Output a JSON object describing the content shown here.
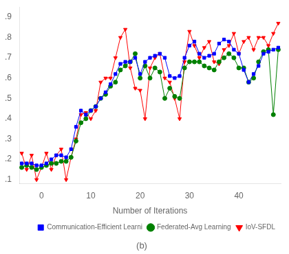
{
  "chart_data": {
    "type": "line",
    "xlabel": "Number of Iterations",
    "annotation": "(b)",
    "x": [
      -4,
      -3,
      -2,
      -1,
      0,
      1,
      2,
      3,
      4,
      5,
      6,
      7,
      8,
      9,
      10,
      11,
      12,
      13,
      14,
      15,
      16,
      17,
      18,
      19,
      20,
      21,
      22,
      23,
      24,
      25,
      26,
      27,
      28,
      29,
      30,
      31,
      32,
      33,
      34,
      35,
      36,
      37,
      38,
      39,
      40,
      41,
      42,
      43,
      44,
      45,
      46,
      47,
      48
    ],
    "series": [
      {
        "name": "Communication-Efficient Learni",
        "color": "#0000FF",
        "marker": "square",
        "values": [
          0.18,
          0.18,
          0.18,
          0.17,
          0.17,
          0.18,
          0.2,
          0.22,
          0.22,
          0.21,
          0.25,
          0.36,
          0.44,
          0.42,
          0.44,
          0.46,
          0.5,
          0.53,
          0.57,
          0.62,
          0.67,
          0.68,
          0.68,
          0.7,
          0.62,
          0.68,
          0.7,
          0.71,
          0.72,
          0.7,
          0.61,
          0.6,
          0.61,
          0.7,
          0.76,
          0.78,
          0.72,
          0.7,
          0.71,
          0.72,
          0.77,
          0.79,
          0.78,
          0.74,
          0.72,
          0.64,
          0.58,
          0.62,
          0.66,
          0.72,
          0.73,
          0.74,
          0.75
        ]
      },
      {
        "name": "Federated-Avg Learning",
        "color": "#008000",
        "marker": "circle",
        "values": [
          0.16,
          0.17,
          0.16,
          0.15,
          0.16,
          0.17,
          0.18,
          0.18,
          0.19,
          0.19,
          0.21,
          0.29,
          0.38,
          0.4,
          0.44,
          0.46,
          0.5,
          0.52,
          0.56,
          0.58,
          0.64,
          0.66,
          0.68,
          0.72,
          0.6,
          0.66,
          0.6,
          0.65,
          0.63,
          0.5,
          0.55,
          0.51,
          0.5,
          0.65,
          0.68,
          0.68,
          0.68,
          0.66,
          0.65,
          0.64,
          0.68,
          0.7,
          0.72,
          0.7,
          0.65,
          0.65,
          0.58,
          0.6,
          0.68,
          0.73,
          0.74,
          0.42,
          0.74
        ]
      },
      {
        "name": "IoV-SFDL",
        "color": "#FF0000",
        "marker": "triangle_down",
        "values": [
          0.23,
          0.15,
          0.22,
          0.1,
          0.16,
          0.23,
          0.15,
          0.22,
          0.25,
          0.1,
          0.21,
          0.3,
          0.42,
          0.43,
          0.4,
          0.44,
          0.58,
          0.6,
          0.6,
          0.7,
          0.8,
          0.84,
          0.65,
          0.55,
          0.54,
          0.4,
          0.65,
          0.7,
          0.72,
          0.6,
          0.58,
          0.5,
          0.4,
          0.68,
          0.83,
          0.76,
          0.7,
          0.75,
          0.78,
          0.68,
          0.67,
          0.74,
          0.76,
          0.82,
          0.72,
          0.78,
          0.8,
          0.74,
          0.8,
          0.8,
          0.76,
          0.82,
          0.87
        ]
      }
    ],
    "xlim": [
      -4.5,
      48.5
    ],
    "ylim": [
      0.08,
      0.95
    ],
    "xticks": [
      0,
      10,
      20,
      30,
      40
    ],
    "yticks": [
      {
        "value": 0.1,
        "label": ".1"
      },
      {
        "value": 0.2,
        "label": ".2"
      },
      {
        "value": 0.3,
        "label": ".3"
      },
      {
        "value": 0.4,
        "label": ".4"
      },
      {
        "value": 0.5,
        "label": ".5"
      },
      {
        "value": 0.6,
        "label": ".6"
      },
      {
        "value": 0.7,
        "label": ".7"
      },
      {
        "value": 0.8,
        "label": ".8"
      },
      {
        "value": 0.9,
        "label": ".9"
      }
    ],
    "grid": false,
    "legend": "lower right"
  }
}
